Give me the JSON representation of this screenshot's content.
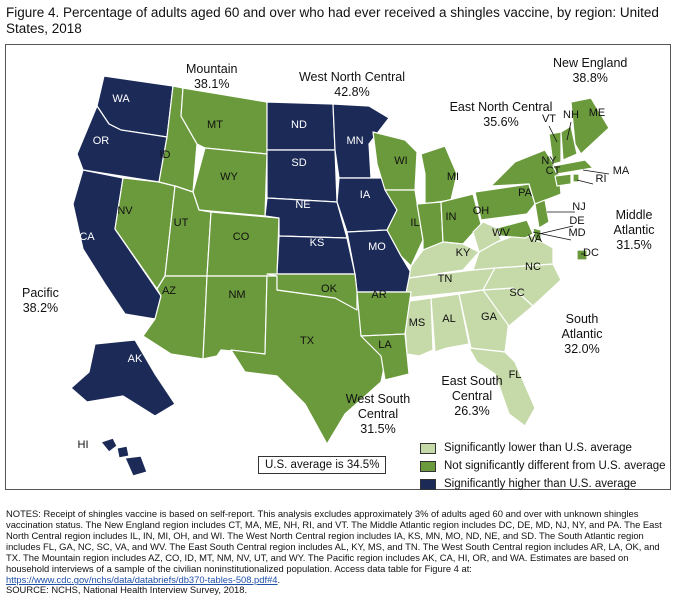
{
  "title": "Figure 4. Percentage of adults aged 60 and over who had ever received a shingles vaccine, by region: United States, 2018",
  "colors": {
    "lower": "#c6d9a8",
    "not_different": "#6a9a3c",
    "higher": "#1b2a57",
    "border": "#ffffff"
  },
  "regions": [
    {
      "name": "New England",
      "value": "38.8%",
      "category": "not_different"
    },
    {
      "name": "Middle Atlantic",
      "value": "31.5%",
      "category": "not_different"
    },
    {
      "name": "East North Central",
      "value": "35.6%",
      "category": "not_different"
    },
    {
      "name": "West North Central",
      "value": "42.8%",
      "category": "higher"
    },
    {
      "name": "South Atlantic",
      "value": "32.0%",
      "category": "lower"
    },
    {
      "name": "East South Central",
      "value": "26.3%",
      "category": "lower"
    },
    {
      "name": "West South Central",
      "value": "31.5%",
      "category": "not_different"
    },
    {
      "name": "Mountain",
      "value": "38.1%",
      "category": "not_different"
    },
    {
      "name": "Pacific",
      "value": "38.2%",
      "category": "higher"
    }
  ],
  "state_labels": [
    "WA",
    "OR",
    "CA",
    "AK",
    "HI",
    "ID",
    "MT",
    "WY",
    "NV",
    "UT",
    "CO",
    "AZ",
    "NM",
    "ND",
    "SD",
    "NE",
    "KS",
    "MN",
    "IA",
    "MO",
    "WI",
    "IL",
    "MI",
    "IN",
    "OH",
    "KY",
    "TN",
    "MS",
    "AL",
    "GA",
    "FL",
    "SC",
    "NC",
    "VA",
    "WV",
    "DC",
    "MD",
    "DE",
    "NJ",
    "PA",
    "NY",
    "CT",
    "RI",
    "MA",
    "VT",
    "NH",
    "ME",
    "TX",
    "OK",
    "AR",
    "LA"
  ],
  "us_average": "U.S. average is 34.5%",
  "legend": [
    {
      "label": "Significantly lower than U.S. average",
      "category": "lower"
    },
    {
      "label": "Not significantly different from U.S. average",
      "category": "not_different"
    },
    {
      "label": "Significantly higher than U.S. average",
      "category": "higher"
    }
  ],
  "notes": {
    "text": "NOTES: Receipt of shingles vaccine is based on self-report. This analysis excludes approximately 3% of adults aged 60 and over with unknown shingles vaccination status. The New England region includes CT, MA, ME, NH, RI, and VT. The Middle Atlantic region includes DC, DE, MD, NJ, NY, and PA. The East North Central region includes IL, IN, MI, OH, and WI. The West North Central region includes IA, KS, MN, MO, ND, NE, and SD. The South Atlantic region includes FL, GA, NC, SC, VA, and WV. The East South Central region includes AL, KY, MS, and TN. The West South Central region includes AR, LA, OK, and TX. The Mountain region includes AZ, CO, ID, MT, NM, NV, UT, and WY. The Pacific region includes AK, CA, HI, OR, and WA. Estimates are based on household interviews of a sample of the civilian noninstitutionalized population. Access data table for Figure 4 at: ",
    "link": "https://www.cdc.gov/nchs/data/databriefs/db370-tables-508.pdf#4",
    "link_suffix": "."
  },
  "source": "SOURCE: NCHS, National Health Interview Survey, 2018."
}
